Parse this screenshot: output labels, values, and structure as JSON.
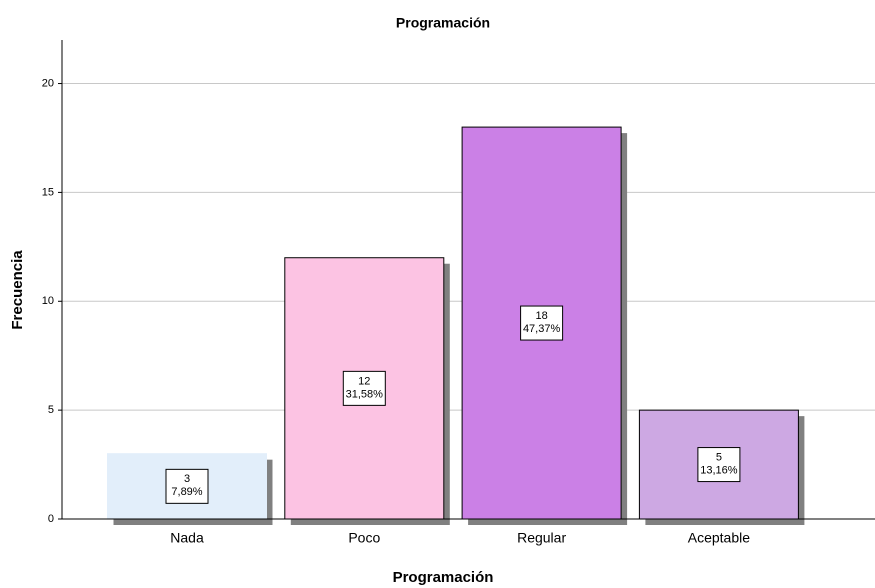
{
  "chart_data": {
    "type": "bar",
    "title": "Programación",
    "x_label": "Programación",
    "y_label": "Frecuencia",
    "categories": [
      "Nada",
      "Poco",
      "Regular",
      "Aceptable"
    ],
    "values": [
      3,
      12,
      18,
      5
    ],
    "percents": [
      7.89,
      31.58,
      47.37,
      13.16
    ],
    "percent_labels": [
      "7,89%",
      "31,58%",
      "47,37%",
      "13,16%"
    ],
    "colors": [
      "#e2eefa",
      "#fcc3e3",
      "#cb80e6",
      "#cda8e3"
    ],
    "ylim": [
      0,
      22
    ],
    "yticks": [
      0,
      5,
      10,
      15,
      20
    ],
    "grid": true
  }
}
